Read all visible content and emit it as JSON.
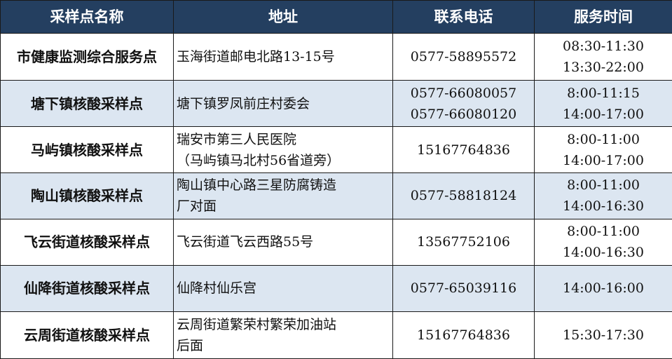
{
  "colors": {
    "header_bg": "#243f60",
    "header_text": "#ffffff",
    "alt_row_bg": "#dce6f1"
  },
  "headers": [
    "采样点名称",
    "地址",
    "联系电话",
    "服务时间"
  ],
  "rows": [
    {
      "name": "市健康监测综合服务点",
      "address": [
        "玉海街道邮电北路13-15号"
      ],
      "phone": [
        "0577-58895572"
      ],
      "hours": [
        "08:30-11:30",
        "13:30-22:00"
      ]
    },
    {
      "name": "塘下镇核酸采样点",
      "address": [
        "塘下镇罗凤前庄村委会"
      ],
      "phone": [
        "0577-66080057",
        "0577-66080120"
      ],
      "hours": [
        "8:00-11:15",
        "14:00-17:00"
      ]
    },
    {
      "name": "马屿镇核酸采样点",
      "address": [
        "瑞安市第三人民医院",
        "（马屿镇马北村56省道旁）"
      ],
      "phone": [
        "15167764836"
      ],
      "hours": [
        "8:00-11:00",
        "14:00-17:00"
      ]
    },
    {
      "name": "陶山镇核酸采样点",
      "address": [
        "陶山镇中心路三星防腐铸造",
        "厂对面"
      ],
      "phone": [
        "0577-58818124"
      ],
      "hours": [
        "8:00-11:00",
        "14:00-16:30"
      ]
    },
    {
      "name": "飞云街道核酸采样点",
      "address": [
        "飞云街道飞云西路55号"
      ],
      "phone": [
        "13567752106"
      ],
      "hours": [
        "8:00-11:00",
        "14:00-16:30"
      ]
    },
    {
      "name": "仙降街道核酸采样点",
      "address": [
        "仙降村仙乐宫"
      ],
      "phone": [
        "0577-65039116"
      ],
      "hours": [
        "14:00-16:00"
      ]
    },
    {
      "name": "云周街道核酸采样点",
      "address": [
        "云周街道繁荣村繁荣加油站",
        "后面"
      ],
      "phone": [
        "15167764836"
      ],
      "hours": [
        "15:30-17:30"
      ]
    }
  ]
}
